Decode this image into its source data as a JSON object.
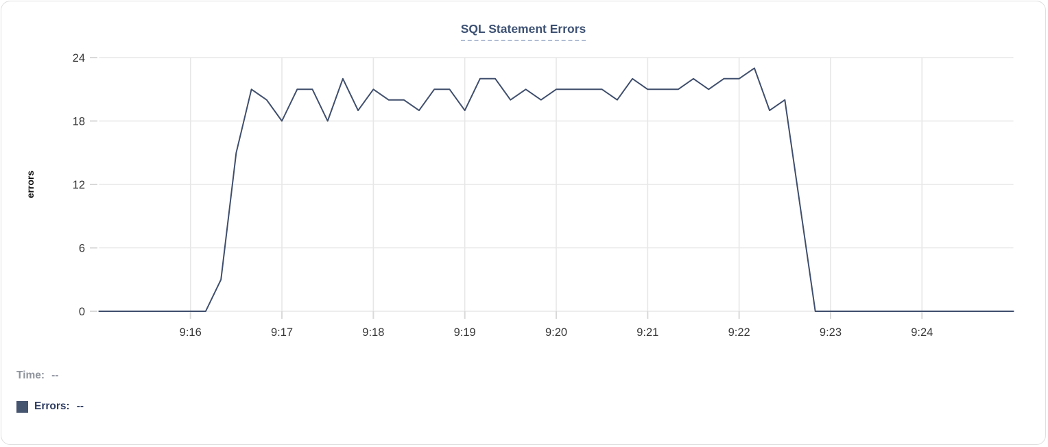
{
  "card": {
    "border_color": "#dedede",
    "background": "#ffffff"
  },
  "chart": {
    "title": "SQL Statement Errors",
    "y_axis_label": "errors",
    "legend": {
      "time_label": "Time:",
      "time_value": "--",
      "errors_label": "Errors:",
      "errors_value": "--"
    },
    "colors": {
      "line": "#3f4e6c",
      "title": "#3d5173",
      "title_underline": "#b1bdd3",
      "grid": "#e7e7e7",
      "tick": "#d9d9d9",
      "tick_text": "#383838",
      "axis_label_text": "#111111",
      "legend_time": "#8f949c",
      "legend_errors": "#2e3d61",
      "swatch": "#45546f"
    }
  },
  "chart_data": {
    "type": "line",
    "title": "SQL Statement Errors",
    "xlabel": "",
    "ylabel": "errors",
    "series_name": "Errors",
    "grid": true,
    "legend_position": "bottom-left",
    "ylim": [
      0,
      24
    ],
    "y_ticks": [
      0,
      6,
      12,
      18,
      24
    ],
    "x_ticks": [
      "9:16",
      "9:17",
      "9:18",
      "9:19",
      "9:20",
      "9:21",
      "9:22",
      "9:23",
      "9:24"
    ],
    "xlim": [
      "9:15:00",
      "9:25:00"
    ],
    "x": [
      "9:15:00",
      "9:15:10",
      "9:15:20",
      "9:15:30",
      "9:15:40",
      "9:15:50",
      "9:16:00",
      "9:16:10",
      "9:16:20",
      "9:16:30",
      "9:16:40",
      "9:16:50",
      "9:17:00",
      "9:17:10",
      "9:17:20",
      "9:17:30",
      "9:17:40",
      "9:17:50",
      "9:18:00",
      "9:18:10",
      "9:18:20",
      "9:18:30",
      "9:18:40",
      "9:18:50",
      "9:19:00",
      "9:19:10",
      "9:19:20",
      "9:19:30",
      "9:19:40",
      "9:19:50",
      "9:20:00",
      "9:20:10",
      "9:20:20",
      "9:20:30",
      "9:20:40",
      "9:20:50",
      "9:21:00",
      "9:21:10",
      "9:21:20",
      "9:21:30",
      "9:21:40",
      "9:21:50",
      "9:22:00",
      "9:22:10",
      "9:22:20",
      "9:22:30",
      "9:22:40",
      "9:22:50",
      "9:23:00",
      "9:23:10",
      "9:23:20",
      "9:23:30",
      "9:23:40",
      "9:23:50",
      "9:24:00",
      "9:24:10",
      "9:24:20",
      "9:24:30",
      "9:24:40",
      "9:24:50",
      "9:25:00"
    ],
    "y": [
      0,
      0,
      0,
      0,
      0,
      0,
      0,
      0,
      3,
      15,
      21,
      20,
      18,
      21,
      21,
      18,
      22,
      19,
      21,
      20,
      20,
      19,
      21,
      21,
      19,
      22,
      22,
      20,
      21,
      20,
      21,
      21,
      21,
      21,
      20,
      22,
      21,
      21,
      21,
      22,
      21,
      22,
      22,
      23,
      19,
      20,
      10,
      0,
      0,
      0,
      0,
      0,
      0,
      0,
      0,
      0,
      0,
      0,
      0,
      0,
      0
    ]
  }
}
